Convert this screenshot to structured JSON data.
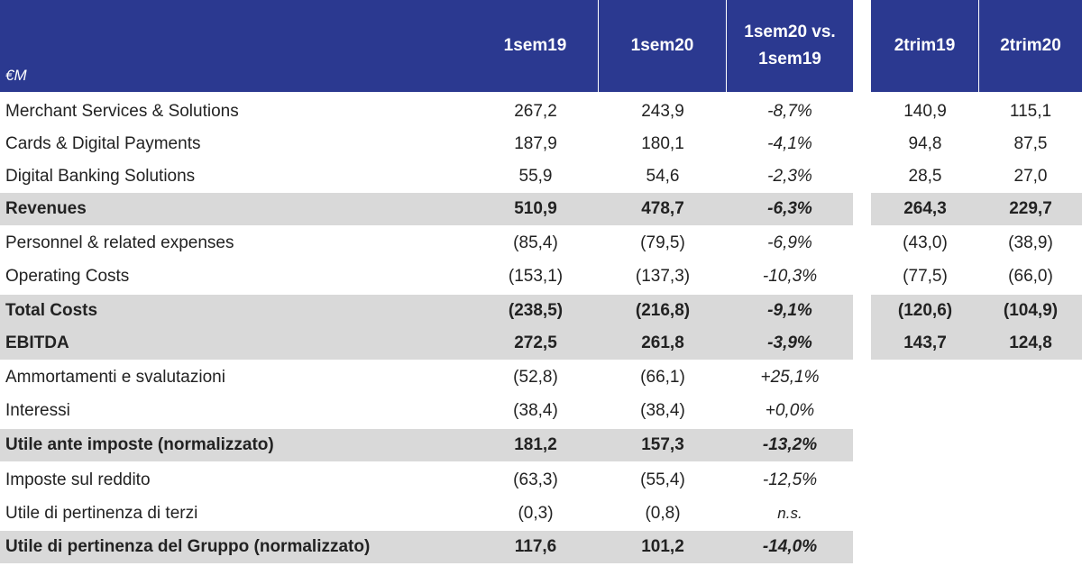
{
  "header": {
    "unit": "€M",
    "col1": "1sem19",
    "col2": "1sem20",
    "col3_line1": "1sem20 vs.",
    "col3_line2": "1sem19",
    "col4": "2trim19",
    "col5": "2trim20"
  },
  "rows": [
    {
      "label": "Merchant Services & Solutions",
      "v1": "267,2",
      "v2": "243,9",
      "v3": "-8,7%",
      "v4": "140,9",
      "v5": "115,1"
    },
    {
      "label": "Cards & Digital Payments",
      "v1": "187,9",
      "v2": "180,1",
      "v3": "-4,1%",
      "v4": "94,8",
      "v5": "87,5"
    },
    {
      "label": "Digital Banking Solutions",
      "v1": "55,9",
      "v2": "54,6",
      "v3": "-2,3%",
      "v4": "28,5",
      "v5": "27,0"
    },
    {
      "label": "Revenues",
      "v1": "510,9",
      "v2": "478,7",
      "v3": "-6,3%",
      "v4": "264,3",
      "v5": "229,7"
    },
    {
      "label": "Personnel & related expenses",
      "v1": "(85,4)",
      "v2": "(79,5)",
      "v3": "-6,9%",
      "v4": "(43,0)",
      "v5": "(38,9)"
    },
    {
      "label": "Operating Costs",
      "v1": "(153,1)",
      "v2": "(137,3)",
      "v3": "-10,3%",
      "v4": "(77,5)",
      "v5": "(66,0)"
    },
    {
      "label": "Total Costs",
      "v1": "(238,5)",
      "v2": "(216,8)",
      "v3": "-9,1%",
      "v4": "(120,6)",
      "v5": "(104,9)"
    },
    {
      "label": "EBITDA",
      "v1": "272,5",
      "v2": "261,8",
      "v3": "-3,9%",
      "v4": "143,7",
      "v5": "124,8"
    },
    {
      "label": "Ammortamenti e svalutazioni",
      "v1": "(52,8)",
      "v2": "(66,1)",
      "v3": "+25,1%"
    },
    {
      "label": "Interessi",
      "v1": "(38,4)",
      "v2": "(38,4)",
      "v3": "+0,0%"
    },
    {
      "label": "Utile ante imposte (normalizzato)",
      "v1": "181,2",
      "v2": "157,3",
      "v3": "-13,2%"
    },
    {
      "label": "Imposte sul reddito",
      "v1": "(63,3)",
      "v2": "(55,4)",
      "v3": "-12,5%"
    },
    {
      "label": "Utile di pertinenza di terzi",
      "v1": "(0,3)",
      "v2": "(0,8)",
      "v3": "n.s."
    },
    {
      "label": "Utile di pertinenza del Gruppo (normalizzato)",
      "v1": "117,6",
      "v2": "101,2",
      "v3": "-14,0%"
    }
  ]
}
